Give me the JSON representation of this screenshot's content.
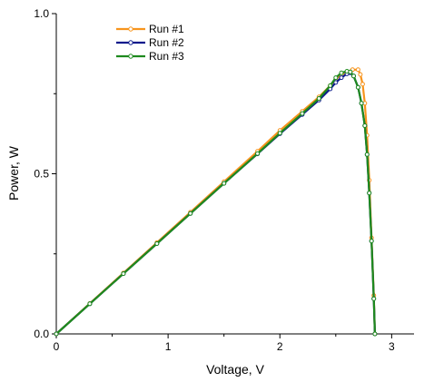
{
  "chart_data": {
    "type": "line",
    "xlabel": "Voltage, V",
    "ylabel": "Power, W",
    "xlim": [
      0,
      3.2
    ],
    "ylim": [
      0,
      1.0
    ],
    "x_ticks": [
      {
        "value": 0,
        "label": "0"
      },
      {
        "value": 1,
        "label": "1"
      },
      {
        "value": 2,
        "label": "2"
      },
      {
        "value": 3,
        "label": "3"
      }
    ],
    "y_ticks": [
      {
        "value": 0,
        "label": "0.0"
      },
      {
        "value": 0.5,
        "label": "0.5"
      },
      {
        "value": 1.0,
        "label": "1.0"
      }
    ],
    "grid": false,
    "legend_position": "top-left",
    "series": [
      {
        "name": "Run #1",
        "color": "#f7941d",
        "x": [
          0,
          0.3,
          0.6,
          0.9,
          1.2,
          1.5,
          1.8,
          2.0,
          2.2,
          2.35,
          2.45,
          2.5,
          2.55,
          2.6,
          2.65,
          2.7,
          2.72,
          2.74,
          2.76,
          2.78,
          2.8,
          2.82,
          2.84,
          2.85
        ],
        "y": [
          0,
          0.095,
          0.19,
          0.285,
          0.38,
          0.475,
          0.57,
          0.635,
          0.695,
          0.74,
          0.775,
          0.795,
          0.81,
          0.818,
          0.825,
          0.825,
          0.81,
          0.78,
          0.72,
          0.62,
          0.48,
          0.3,
          0.12,
          0
        ]
      },
      {
        "name": "Run #2",
        "color": "#0a1a8c",
        "x": [
          0,
          0.3,
          0.6,
          0.9,
          1.2,
          1.5,
          1.8,
          2.0,
          2.2,
          2.35,
          2.45,
          2.5,
          2.55,
          2.6,
          2.63,
          2.66,
          2.7,
          2.73,
          2.76,
          2.78,
          2.8,
          2.82,
          2.84,
          2.85
        ],
        "y": [
          0,
          0.094,
          0.188,
          0.282,
          0.376,
          0.47,
          0.562,
          0.625,
          0.685,
          0.73,
          0.765,
          0.785,
          0.8,
          0.812,
          0.815,
          0.805,
          0.77,
          0.72,
          0.65,
          0.56,
          0.44,
          0.29,
          0.11,
          0
        ]
      },
      {
        "name": "Run #3",
        "color": "#1e8a1e",
        "x": [
          0,
          0.3,
          0.6,
          0.9,
          1.2,
          1.5,
          1.8,
          2.0,
          2.2,
          2.35,
          2.45,
          2.5,
          2.55,
          2.6,
          2.63,
          2.66,
          2.7,
          2.73,
          2.76,
          2.78,
          2.8,
          2.82,
          2.84,
          2.85
        ],
        "y": [
          0,
          0.094,
          0.188,
          0.282,
          0.376,
          0.47,
          0.563,
          0.627,
          0.688,
          0.735,
          0.775,
          0.8,
          0.815,
          0.82,
          0.818,
          0.805,
          0.77,
          0.72,
          0.65,
          0.56,
          0.44,
          0.29,
          0.11,
          0
        ]
      }
    ]
  }
}
